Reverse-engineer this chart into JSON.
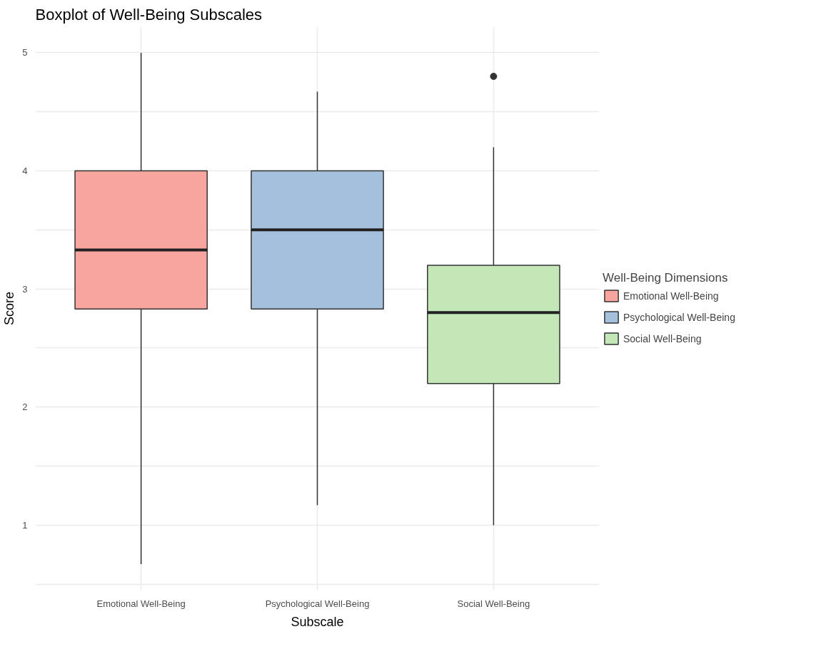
{
  "chart_data": {
    "type": "box",
    "title": "Boxplot of Well-Being Subscales",
    "xlabel": "Subscale",
    "ylabel": "Score",
    "legend_title": "Well-Being Dimensions",
    "categories": [
      "Emotional Well-Being",
      "Psychological Well-Being",
      "Social Well-Being"
    ],
    "series": [
      {
        "name": "Emotional Well-Being",
        "color": "#f8a59f",
        "boxes": [
          {
            "low": 0.67,
            "q1": 2.83,
            "median": 3.33,
            "q3": 4.0,
            "high": 5.0
          },
          null,
          null
        ]
      },
      {
        "name": "Psychological Well-Being",
        "color": "#a5c0dc",
        "boxes": [
          null,
          {
            "low": 1.17,
            "q1": 2.83,
            "median": 3.5,
            "q3": 4.0,
            "high": 4.67
          },
          null
        ]
      },
      {
        "name": "Social Well-Being",
        "color": "#c3e7b7",
        "boxes": [
          null,
          null,
          {
            "low": 1.0,
            "q1": 2.2,
            "median": 2.8,
            "q3": 3.2,
            "high": 4.2,
            "outliers": [
              4.8
            ]
          }
        ]
      }
    ],
    "ylim": [
      0.45,
      5.22
    ],
    "yticks": [
      {
        "value": 0.5,
        "label": null
      },
      1,
      {
        "value": 1.5,
        "label": null
      },
      2,
      {
        "value": 2.5,
        "label": null
      },
      3,
      {
        "value": 3.5,
        "label": null
      },
      4,
      {
        "value": 4.5,
        "label": null
      },
      5
    ],
    "grid": true,
    "legend": "right"
  }
}
